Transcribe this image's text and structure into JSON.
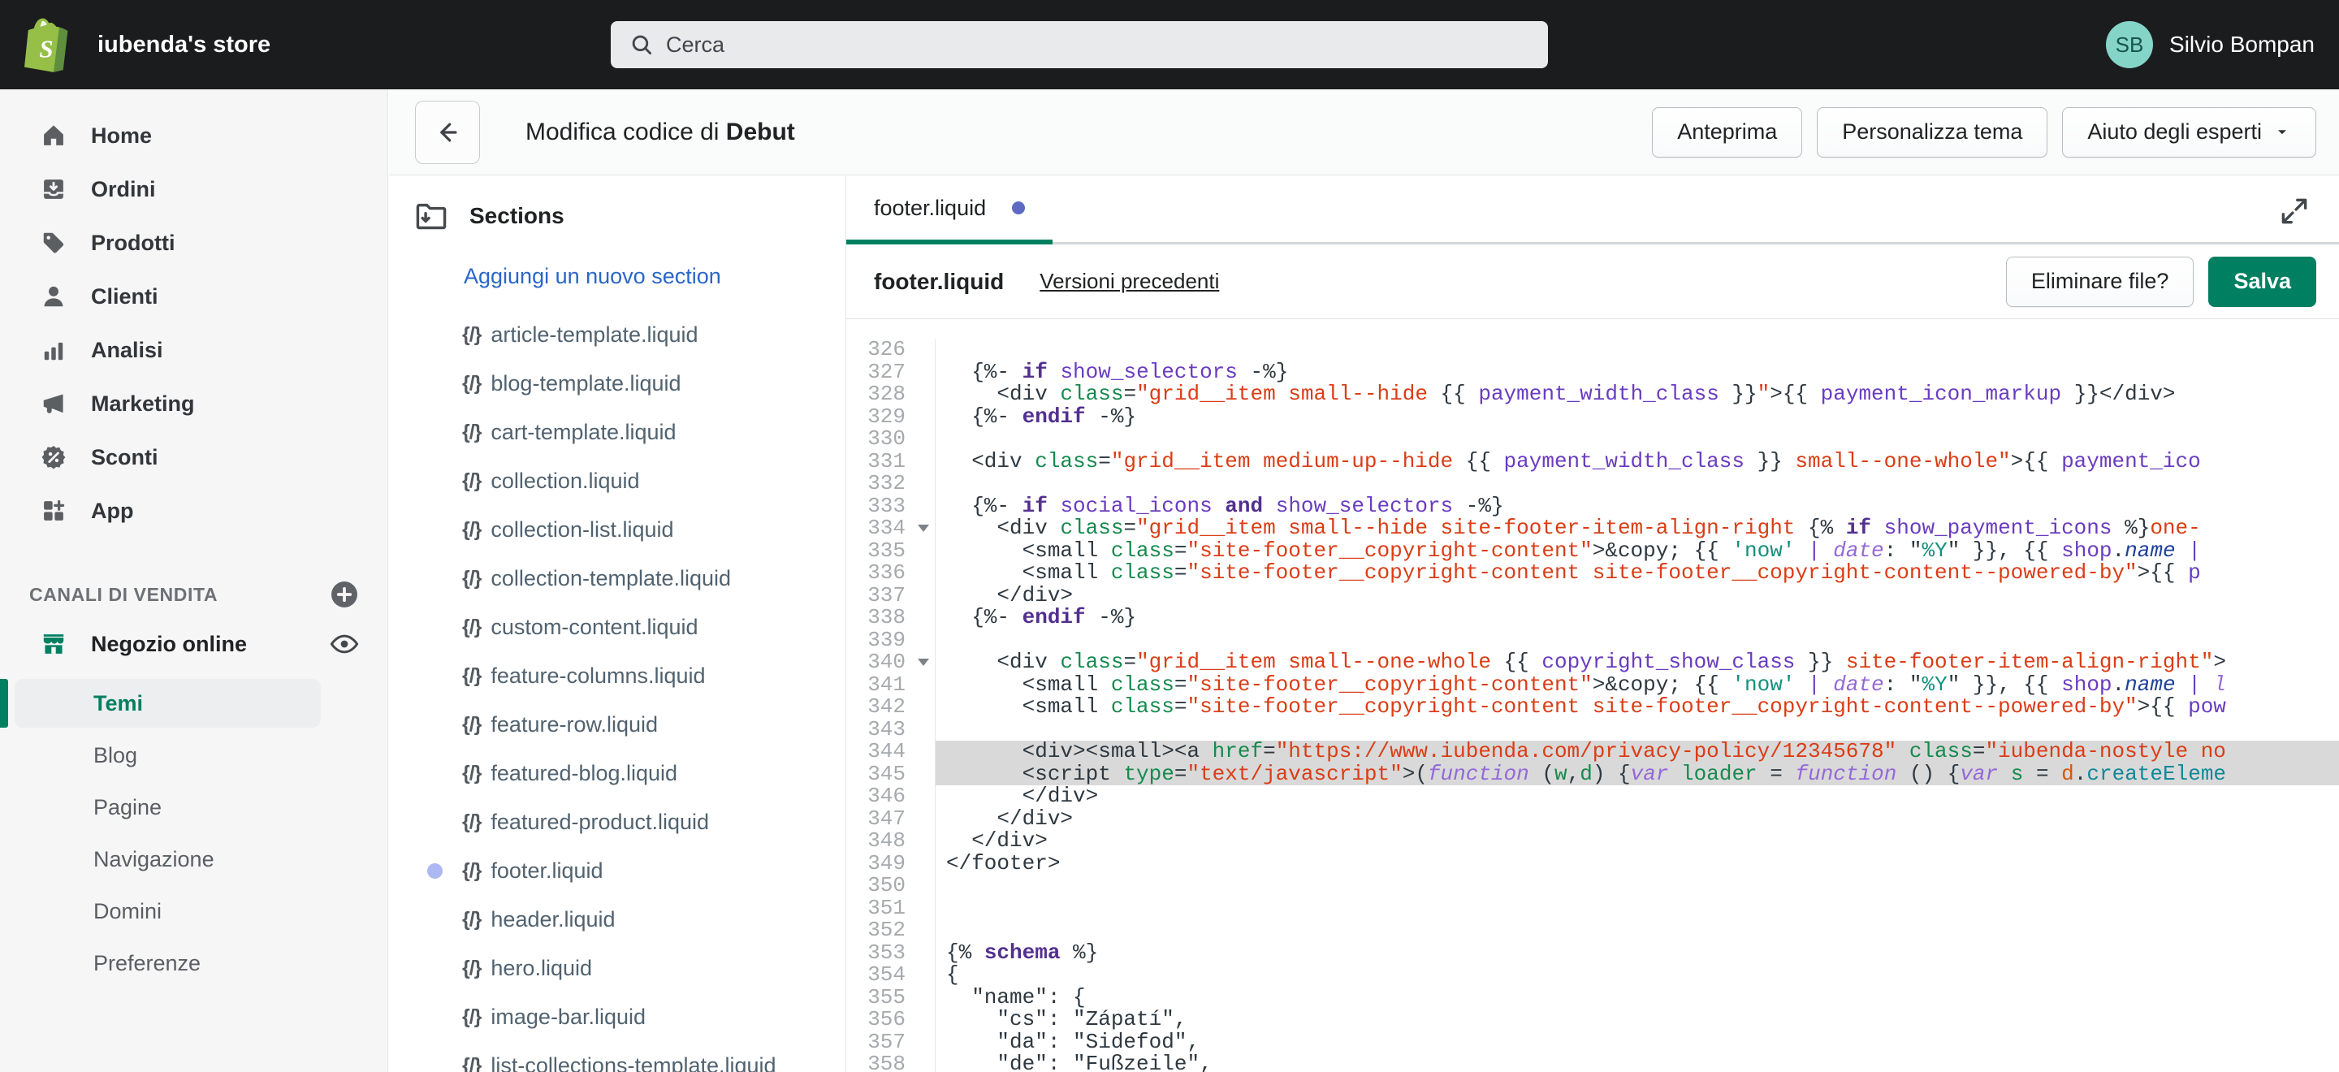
{
  "colors": {
    "accent_green": "#008060",
    "link_blue": "#2b66c9",
    "tab_dot": "#5c6ac4",
    "modified_dot": "#adb8f2",
    "topbar_bg": "#1b1c1d",
    "avatar_bg": "#85d4c8",
    "selection_gray": "#d9d9d9"
  },
  "topbar": {
    "store_name": "iubenda's store",
    "search_placeholder": "Cerca",
    "user_initials": "SB",
    "user_name": "Silvio Bompan"
  },
  "sidebar": {
    "items": [
      {
        "icon": "home-icon",
        "label": "Home"
      },
      {
        "icon": "orders-icon",
        "label": "Ordini"
      },
      {
        "icon": "products-icon",
        "label": "Prodotti"
      },
      {
        "icon": "customers-icon",
        "label": "Clienti"
      },
      {
        "icon": "analytics-icon",
        "label": "Analisi"
      },
      {
        "icon": "marketing-icon",
        "label": "Marketing"
      },
      {
        "icon": "discounts-icon",
        "label": "Sconti"
      },
      {
        "icon": "apps-icon",
        "label": "App"
      }
    ],
    "section_header": "CANALI DI VENDITA",
    "online_store_label": "Negozio online",
    "sub_items": [
      {
        "label": "Temi",
        "active": true
      },
      {
        "label": "Blog",
        "active": false
      },
      {
        "label": "Pagine",
        "active": false
      },
      {
        "label": "Navigazione",
        "active": false
      },
      {
        "label": "Domini",
        "active": false
      },
      {
        "label": "Preferenze",
        "active": false
      }
    ]
  },
  "header": {
    "title_prefix": "Modifica codice di ",
    "theme_name": "Debut",
    "buttons": [
      "Anteprima",
      "Personalizza tema",
      "Aiuto degli esperti"
    ]
  },
  "file_panel": {
    "folder_label": "Sections",
    "add_link": "Aggiungi un nuovo section",
    "files": [
      {
        "name": "article-template.liquid",
        "modified": false
      },
      {
        "name": "blog-template.liquid",
        "modified": false
      },
      {
        "name": "cart-template.liquid",
        "modified": false
      },
      {
        "name": "collection.liquid",
        "modified": false
      },
      {
        "name": "collection-list.liquid",
        "modified": false
      },
      {
        "name": "collection-template.liquid",
        "modified": false
      },
      {
        "name": "custom-content.liquid",
        "modified": false
      },
      {
        "name": "feature-columns.liquid",
        "modified": false
      },
      {
        "name": "feature-row.liquid",
        "modified": false
      },
      {
        "name": "featured-blog.liquid",
        "modified": false
      },
      {
        "name": "featured-product.liquid",
        "modified": false
      },
      {
        "name": "footer.liquid",
        "modified": true
      },
      {
        "name": "header.liquid",
        "modified": false
      },
      {
        "name": "hero.liquid",
        "modified": false
      },
      {
        "name": "image-bar.liquid",
        "modified": false
      },
      {
        "name": "list-collections-template.liquid",
        "modified": false
      }
    ]
  },
  "editor": {
    "tab_label": "footer.liquid",
    "file_name": "footer.liquid",
    "versions_label": "Versioni precedenti",
    "delete_label": "Eliminare file?",
    "save_label": "Salva",
    "code_lines": [
      {
        "n": 326,
        "t": []
      },
      {
        "n": 327,
        "t": [
          [
            "d",
            "  {%- "
          ],
          [
            "k",
            "if"
          ],
          [
            "d",
            " "
          ],
          [
            "v",
            "show_selectors"
          ],
          [
            "d",
            " -%}"
          ]
        ]
      },
      {
        "n": 328,
        "t": [
          [
            "d",
            "    <div "
          ],
          [
            "a",
            "class"
          ],
          [
            "d",
            "="
          ],
          [
            "s",
            "\"grid__item small--hide "
          ],
          [
            "d",
            "{{ "
          ],
          [
            "v",
            "payment_width_class"
          ],
          [
            "d",
            " }}"
          ],
          [
            "s",
            "\""
          ],
          [
            "d",
            ">{{ "
          ],
          [
            "v",
            "payment_icon_markup"
          ],
          [
            "d",
            " }}</div>"
          ]
        ]
      },
      {
        "n": 329,
        "t": [
          [
            "d",
            "  {%- "
          ],
          [
            "k",
            "endif"
          ],
          [
            "d",
            " -%}"
          ]
        ]
      },
      {
        "n": 330,
        "t": []
      },
      {
        "n": 331,
        "t": [
          [
            "d",
            "  <div "
          ],
          [
            "a",
            "class"
          ],
          [
            "d",
            "="
          ],
          [
            "s",
            "\"grid__item medium-up--hide "
          ],
          [
            "d",
            "{{ "
          ],
          [
            "v",
            "payment_width_class"
          ],
          [
            "d",
            " }}"
          ],
          [
            "s",
            " small--one-whole\""
          ],
          [
            "d",
            ">{{ "
          ],
          [
            "v",
            "payment_ico"
          ]
        ]
      },
      {
        "n": 332,
        "t": []
      },
      {
        "n": 333,
        "t": [
          [
            "d",
            "  {%- "
          ],
          [
            "k",
            "if"
          ],
          [
            "d",
            " "
          ],
          [
            "v",
            "social_icons"
          ],
          [
            "d",
            " "
          ],
          [
            "k",
            "and"
          ],
          [
            "d",
            " "
          ],
          [
            "v",
            "show_selectors"
          ],
          [
            "d",
            " -%}"
          ]
        ]
      },
      {
        "n": 334,
        "fold": true,
        "t": [
          [
            "d",
            "    <div "
          ],
          [
            "a",
            "class"
          ],
          [
            "d",
            "="
          ],
          [
            "s",
            "\"grid__item small--hide site-footer-item-align-right "
          ],
          [
            "d",
            "{% "
          ],
          [
            "k",
            "if"
          ],
          [
            "d",
            " "
          ],
          [
            "v",
            "show_payment_icons"
          ],
          [
            "d",
            " %}"
          ],
          [
            "s",
            "one-"
          ]
        ]
      },
      {
        "n": 335,
        "t": [
          [
            "d",
            "      <small "
          ],
          [
            "a",
            "class"
          ],
          [
            "d",
            "="
          ],
          [
            "s",
            "\"site-footer__copyright-content\""
          ],
          [
            "d",
            ">&copy; {{ "
          ],
          [
            "t",
            "'now'"
          ],
          [
            "d",
            " "
          ],
          [
            "v",
            "|"
          ],
          [
            "d",
            " "
          ],
          [
            "f",
            "date"
          ],
          [
            "d",
            ": \""
          ],
          [
            "t",
            "%Y"
          ],
          [
            "d",
            "\" }}, {{ "
          ],
          [
            "v",
            "shop"
          ],
          [
            "d",
            "."
          ],
          [
            "p",
            "name"
          ],
          [
            "d",
            " "
          ],
          [
            "v",
            "|"
          ]
        ]
      },
      {
        "n": 336,
        "t": [
          [
            "d",
            "      <small "
          ],
          [
            "a",
            "class"
          ],
          [
            "d",
            "="
          ],
          [
            "s",
            "\"site-footer__copyright-content site-footer__copyright-content--powered-by\""
          ],
          [
            "d",
            ">{{ "
          ],
          [
            "v",
            "p"
          ]
        ]
      },
      {
        "n": 337,
        "t": [
          [
            "d",
            "    </div>"
          ]
        ]
      },
      {
        "n": 338,
        "t": [
          [
            "d",
            "  {%- "
          ],
          [
            "k",
            "endif"
          ],
          [
            "d",
            " -%}"
          ]
        ]
      },
      {
        "n": 339,
        "t": []
      },
      {
        "n": 340,
        "fold": true,
        "t": [
          [
            "d",
            "    <div "
          ],
          [
            "a",
            "class"
          ],
          [
            "d",
            "="
          ],
          [
            "s",
            "\"grid__item small--one-whole "
          ],
          [
            "d",
            "{{ "
          ],
          [
            "v",
            "copyright_show_class"
          ],
          [
            "d",
            " }}"
          ],
          [
            "s",
            " site-footer-item-align-right\""
          ],
          [
            "d",
            ">"
          ]
        ]
      },
      {
        "n": 341,
        "t": [
          [
            "d",
            "      <small "
          ],
          [
            "a",
            "class"
          ],
          [
            "d",
            "="
          ],
          [
            "s",
            "\"site-footer__copyright-content\""
          ],
          [
            "d",
            ">&copy; {{ "
          ],
          [
            "t",
            "'now'"
          ],
          [
            "d",
            " "
          ],
          [
            "v",
            "|"
          ],
          [
            "d",
            " "
          ],
          [
            "f",
            "date"
          ],
          [
            "d",
            ": \""
          ],
          [
            "t",
            "%Y"
          ],
          [
            "d",
            "\" }}, {{ "
          ],
          [
            "v",
            "shop"
          ],
          [
            "d",
            "."
          ],
          [
            "p",
            "name"
          ],
          [
            "d",
            " "
          ],
          [
            "v",
            "|"
          ],
          [
            "d",
            " "
          ],
          [
            "f",
            "l"
          ]
        ]
      },
      {
        "n": 342,
        "t": [
          [
            "d",
            "      <small "
          ],
          [
            "a",
            "class"
          ],
          [
            "d",
            "="
          ],
          [
            "s",
            "\"site-footer__copyright-content site-footer__copyright-content--powered-by\""
          ],
          [
            "d",
            ">{{ "
          ],
          [
            "v",
            "pow"
          ]
        ]
      },
      {
        "n": 343,
        "t": []
      },
      {
        "n": 344,
        "hl": true,
        "t": [
          [
            "d",
            "      <div><small><a "
          ],
          [
            "a",
            "href"
          ],
          [
            "d",
            "="
          ],
          [
            "s",
            "\"https://www.iubenda.com/privacy-policy/12345678\""
          ],
          [
            "d",
            " "
          ],
          [
            "a",
            "class"
          ],
          [
            "d",
            "="
          ],
          [
            "s",
            "\"iubenda-nostyle no"
          ]
        ]
      },
      {
        "n": 345,
        "hl": true,
        "t": [
          [
            "d",
            "      <script "
          ],
          [
            "a",
            "type"
          ],
          [
            "d",
            "="
          ],
          [
            "s",
            "\"text/javascript\""
          ],
          [
            "d",
            ">("
          ],
          [
            "f",
            "function"
          ],
          [
            "d",
            " ("
          ],
          [
            "g",
            "w"
          ],
          [
            "d",
            ","
          ],
          [
            "g",
            "d"
          ],
          [
            "d",
            ") {"
          ],
          [
            "f",
            "var"
          ],
          [
            "d",
            " "
          ],
          [
            "g",
            "loader"
          ],
          [
            "d",
            " = "
          ],
          [
            "f",
            "function"
          ],
          [
            "d",
            " () {"
          ],
          [
            "f",
            "var"
          ],
          [
            "d",
            " "
          ],
          [
            "g",
            "s"
          ],
          [
            "d",
            " = "
          ],
          [
            "o",
            "d"
          ],
          [
            "d",
            "."
          ],
          [
            "c",
            "createEleme"
          ]
        ]
      },
      {
        "n": 346,
        "t": [
          [
            "d",
            "      </div>"
          ]
        ]
      },
      {
        "n": 347,
        "t": [
          [
            "d",
            "    </div>"
          ]
        ]
      },
      {
        "n": 348,
        "t": [
          [
            "d",
            "  </div>"
          ]
        ]
      },
      {
        "n": 349,
        "t": [
          [
            "d",
            "</footer>"
          ]
        ]
      },
      {
        "n": 350,
        "t": []
      },
      {
        "n": 351,
        "t": []
      },
      {
        "n": 352,
        "t": []
      },
      {
        "n": 353,
        "t": [
          [
            "d",
            "{% "
          ],
          [
            "k",
            "schema"
          ],
          [
            "d",
            " %}"
          ]
        ]
      },
      {
        "n": 354,
        "t": [
          [
            "d",
            "{"
          ]
        ]
      },
      {
        "n": 355,
        "t": [
          [
            "d",
            "  \"name\": {"
          ]
        ]
      },
      {
        "n": 356,
        "t": [
          [
            "d",
            "    \"cs\": \"Zápatí\","
          ]
        ]
      },
      {
        "n": 357,
        "t": [
          [
            "d",
            "    \"da\": \"Sidefod\","
          ]
        ]
      },
      {
        "n": 358,
        "t": [
          [
            "d",
            "    \"de\": \"Fußzeile\","
          ]
        ]
      }
    ]
  }
}
